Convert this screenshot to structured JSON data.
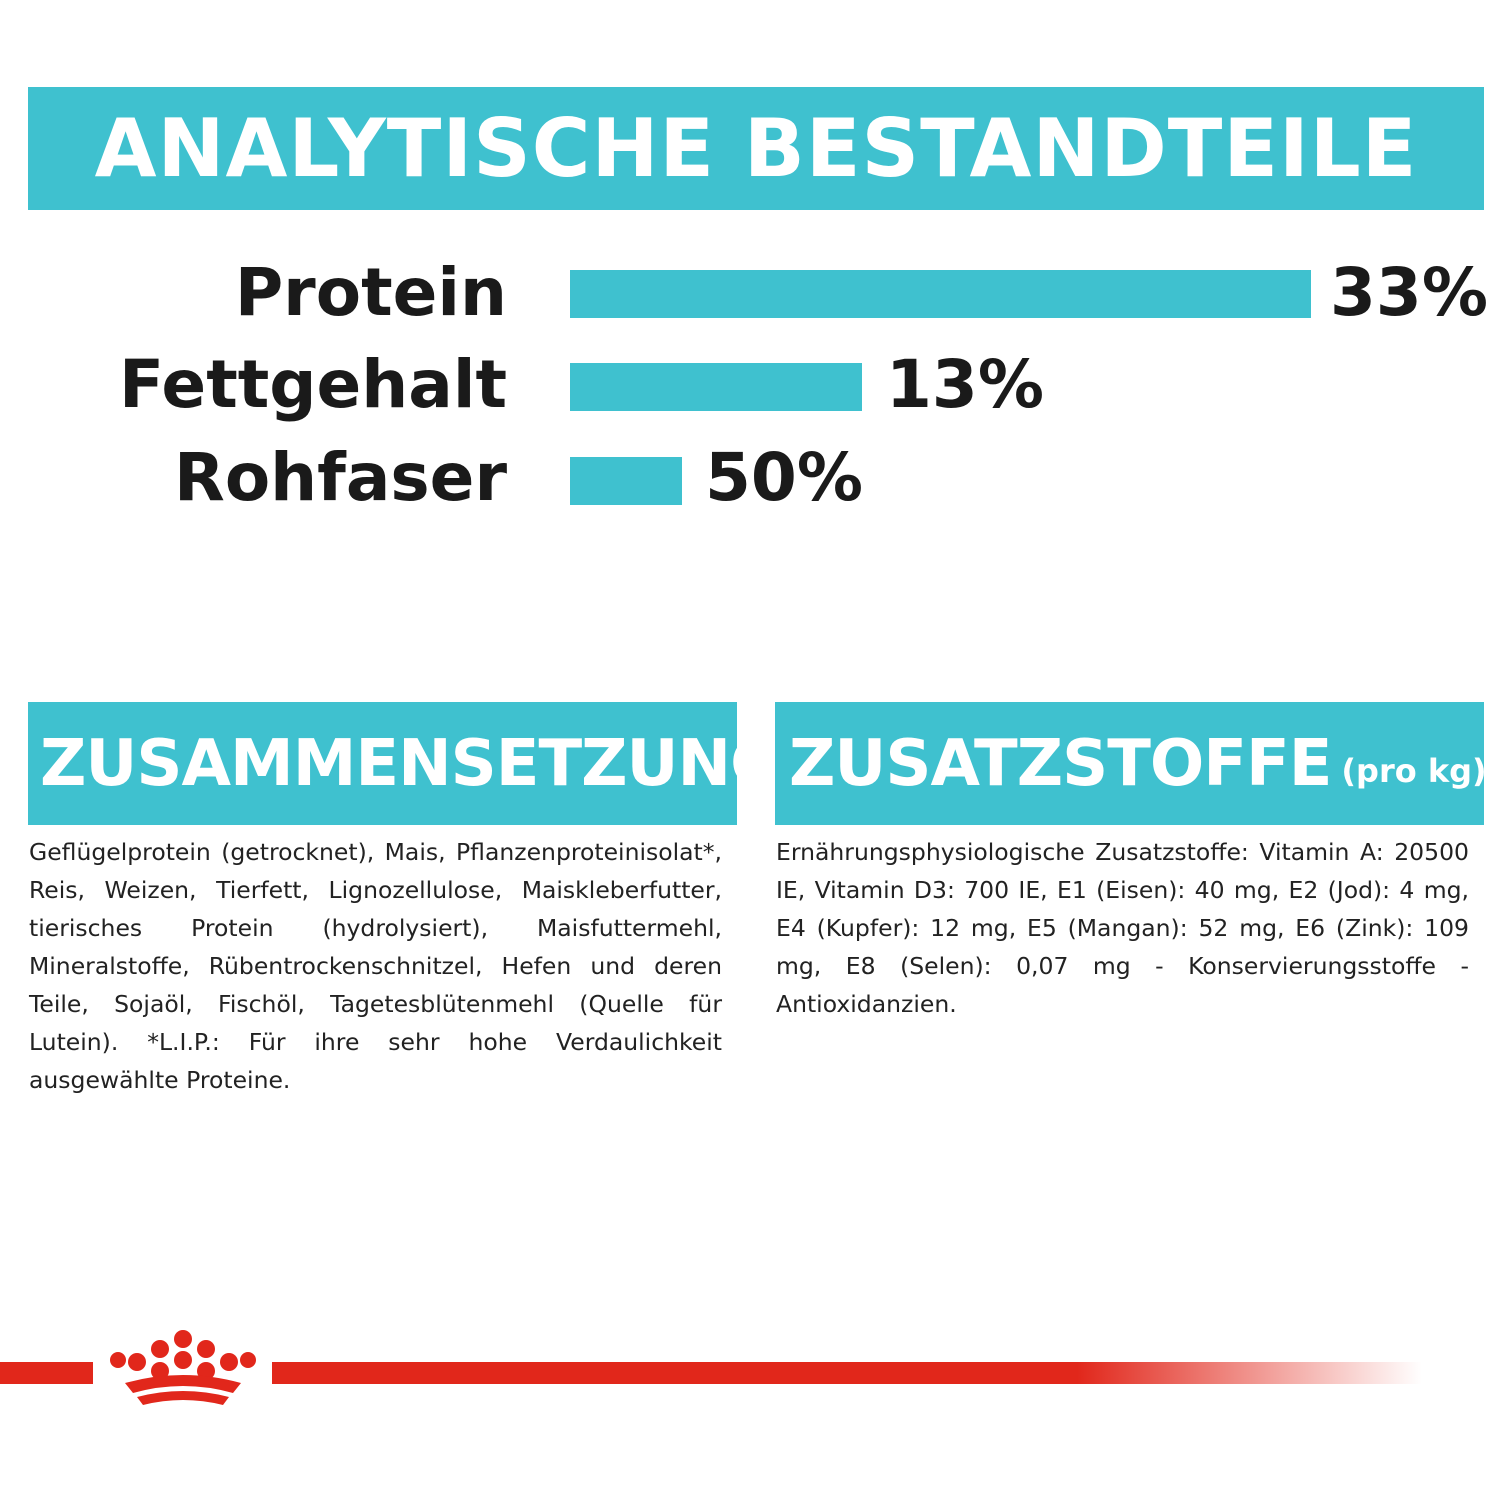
{
  "header": {
    "title": "ANALYTISCHE BESTANDTEILE"
  },
  "nutrients": [
    {
      "label": "Protein",
      "value_text": "33%"
    },
    {
      "label": "Fettgehalt",
      "value_text": "13%"
    },
    {
      "label": "Rohfaser",
      "value_text": "50%"
    }
  ],
  "composition": {
    "title": "ZUSAMMENSETZUNG",
    "text": "Geflügelprotein (getrocknet), Mais, Pflanzenproteinisolat*, Reis, Weizen, Tierfett, Lignozellulose, Maiskleberfutter, tierisches Protein (hydrolysiert), Maisfuttermehl, Mineralstoffe, Rübentrockenschnitzel, Hefen und deren Teile, Sojaöl, Fischöl, Tagetesblütenmehl (Quelle für Lutein). *L.I.P.: Für ihre sehr hohe Verdaulichkeit ausgewählte Proteine."
  },
  "additives": {
    "title": "ZUSATZSTOFFE",
    "subtitle": "(pro kg)",
    "text": "Ernährungsphysiologische Zusatzstoffe: Vitamin A: 20500 IE, Vitamin D3: 700 IE, E1 (Eisen): 40 mg, E2 (Jod): 4 mg, E4 (Kupfer): 12 mg, E5 (Mangan): 52 mg, E6 (Zink): 109 mg, E8 (Selen): 0,07 mg - Konservierungsstoffe - Antioxidanzien."
  },
  "colors": {
    "accent": "#3fc1cf",
    "brand_red": "#e1271b",
    "text": "#1a1a1a"
  },
  "icons": {
    "logo": "crown-icon"
  }
}
